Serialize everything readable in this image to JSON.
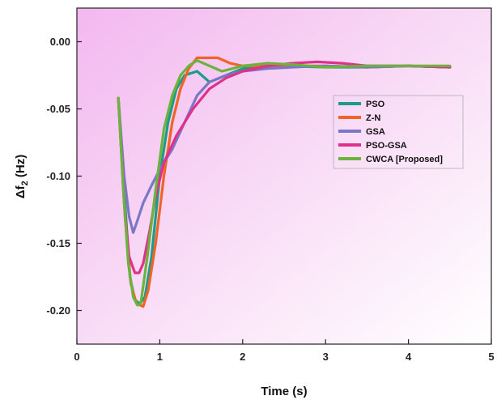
{
  "chart_data": {
    "type": "line",
    "xlabel": "Time (s)",
    "ylabel": {
      "main": "Δf",
      "sub": "2",
      "suffix": " (Hz)"
    },
    "xlim": [
      0,
      5
    ],
    "ylim": [
      -0.225,
      0.025
    ],
    "x_ticks": [
      0,
      1,
      2,
      3,
      4,
      5
    ],
    "x_tick_labels": [
      "0",
      "1",
      "2",
      "3",
      "4",
      "5"
    ],
    "y_ticks": [
      0.0,
      -0.05,
      -0.1,
      -0.15,
      -0.2
    ],
    "y_tick_labels": [
      "0.00",
      "-0.05",
      "-0.10",
      "-0.15",
      "-0.20"
    ],
    "grid": false,
    "legend_position": "right-middle",
    "background": "pink-white gradient",
    "series": [
      {
        "name": "PSO",
        "color": "#1c9c88",
        "x": [
          0.5,
          0.58,
          0.64,
          0.7,
          0.76,
          0.82,
          0.9,
          1.0,
          1.1,
          1.2,
          1.3,
          1.45,
          1.6,
          1.8,
          2.0,
          2.5,
          3.0,
          3.5,
          4.0,
          4.5
        ],
        "y": [
          -0.042,
          -0.12,
          -0.175,
          -0.192,
          -0.195,
          -0.19,
          -0.16,
          -0.1,
          -0.06,
          -0.035,
          -0.025,
          -0.022,
          -0.03,
          -0.025,
          -0.02,
          -0.018,
          -0.019,
          -0.019,
          -0.018,
          -0.019
        ]
      },
      {
        "name": "Z-N",
        "color": "#f0642a",
        "x": [
          0.5,
          0.58,
          0.65,
          0.72,
          0.8,
          0.86,
          0.95,
          1.05,
          1.15,
          1.25,
          1.35,
          1.45,
          1.55,
          1.7,
          1.85,
          2.0,
          2.5,
          3.0,
          3.5,
          4.0,
          4.5
        ],
        "y": [
          -0.042,
          -0.13,
          -0.18,
          -0.195,
          -0.197,
          -0.185,
          -0.15,
          -0.1,
          -0.06,
          -0.035,
          -0.02,
          -0.012,
          -0.012,
          -0.012,
          -0.016,
          -0.018,
          -0.018,
          -0.018,
          -0.019,
          -0.018,
          -0.019
        ]
      },
      {
        "name": "GSA",
        "color": "#7b76c8",
        "x": [
          0.5,
          0.57,
          0.63,
          0.68,
          0.72,
          0.8,
          0.9,
          1.0,
          1.15,
          1.3,
          1.45,
          1.6,
          1.8,
          2.0,
          2.3,
          2.6,
          3.0,
          3.5,
          4.0,
          4.5
        ],
        "y": [
          -0.042,
          -0.1,
          -0.13,
          -0.142,
          -0.135,
          -0.12,
          -0.107,
          -0.095,
          -0.08,
          -0.06,
          -0.04,
          -0.03,
          -0.025,
          -0.022,
          -0.02,
          -0.019,
          -0.018,
          -0.019,
          -0.018,
          -0.019
        ]
      },
      {
        "name": "PSO-GSA",
        "color": "#e0318a",
        "x": [
          0.5,
          0.57,
          0.63,
          0.7,
          0.75,
          0.8,
          0.88,
          0.95,
          1.05,
          1.2,
          1.4,
          1.6,
          1.8,
          2.0,
          2.3,
          2.6,
          2.9,
          3.2,
          3.5,
          4.0,
          4.5
        ],
        "y": [
          -0.042,
          -0.12,
          -0.16,
          -0.172,
          -0.172,
          -0.165,
          -0.14,
          -0.115,
          -0.09,
          -0.07,
          -0.05,
          -0.035,
          -0.027,
          -0.022,
          -0.018,
          -0.016,
          -0.015,
          -0.016,
          -0.018,
          -0.018,
          -0.019
        ]
      },
      {
        "name": "CWCA [Proposed]",
        "color": "#6cb33e",
        "x": [
          0.5,
          0.56,
          0.62,
          0.68,
          0.73,
          0.77,
          0.85,
          0.95,
          1.05,
          1.15,
          1.25,
          1.35,
          1.45,
          1.6,
          1.75,
          2.0,
          2.3,
          2.6,
          3.0,
          3.5,
          4.0,
          4.5
        ],
        "y": [
          -0.042,
          -0.11,
          -0.165,
          -0.19,
          -0.196,
          -0.195,
          -0.16,
          -0.11,
          -0.065,
          -0.04,
          -0.025,
          -0.018,
          -0.014,
          -0.018,
          -0.022,
          -0.018,
          -0.016,
          -0.017,
          -0.019,
          -0.018,
          -0.018,
          -0.018
        ]
      }
    ]
  }
}
